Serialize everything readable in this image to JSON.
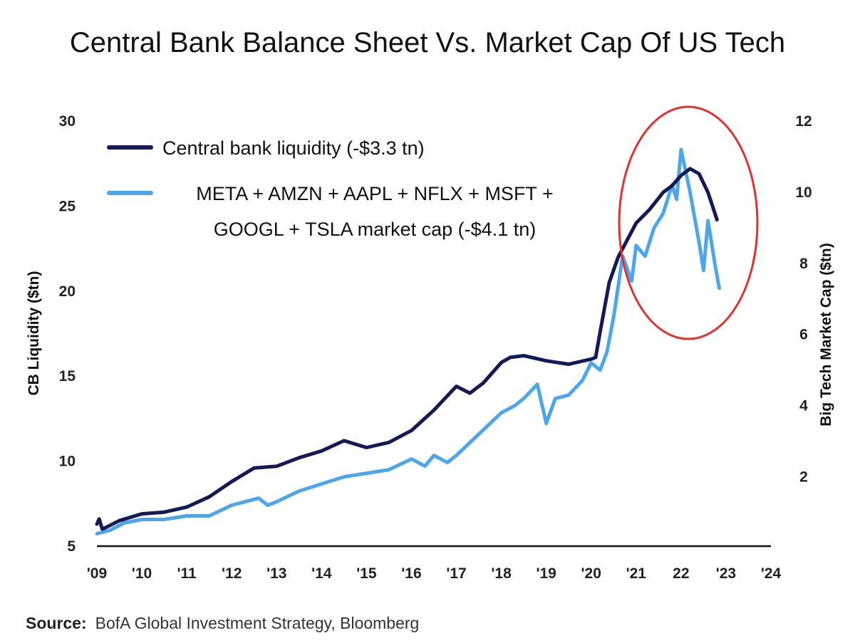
{
  "source": {
    "label": "Source:",
    "text": "BofA Global Investment Strategy, Bloomberg"
  },
  "colors": {
    "cb_liquidity": "#141a55",
    "big_tech": "#4ea6ea",
    "highlight_circle": "#e0332e",
    "axis": "#111111"
  },
  "chart_data": {
    "type": "line",
    "title": "Central Bank Balance Sheet Vs. Market Cap Of US Tech",
    "xlabel": "",
    "ylabel": "CB Liquidity ($tn)",
    "y2label": "Big Tech Market Cap ($tn)",
    "xlim": [
      2009,
      2024
    ],
    "ylim": [
      5,
      30
    ],
    "y2lim": [
      0.05,
      12
    ],
    "x_ticks": [
      2009,
      2010,
      2011,
      2012,
      2013,
      2014,
      2015,
      2016,
      2017,
      2018,
      2019,
      2020,
      2021,
      2022,
      2023,
      2024
    ],
    "x_tick_labels": [
      "'09",
      "'10",
      "'11",
      "'12",
      "'13",
      "'14",
      "'15",
      "'16",
      "'17",
      "'18",
      "'19",
      "'20",
      "'21",
      "22",
      "'23",
      "'24"
    ],
    "y_ticks": [
      5,
      10,
      15,
      20,
      25,
      30
    ],
    "y_tick_labels": [
      "5",
      "10",
      "15",
      "20",
      "25",
      "30"
    ],
    "y2_ticks": [
      2,
      4,
      6,
      8,
      10,
      12
    ],
    "y2_tick_labels": [
      "2",
      "4",
      "6",
      "8",
      "10",
      "12"
    ],
    "legend": [
      "Central bank liquidity (-$3.3 tn)",
      "META + AMZN + AAPL + NFLX + MSFT + GOOGL + TSLA market cap (-$4.1 tn)"
    ],
    "legend_lines": [
      [
        "Central bank liquidity (-$3.3 tn)"
      ],
      [
        "META + AMZN + AAPL + NFLX + MSFT +",
        "GOOGL + TSLA market cap (-$4.1 tn)"
      ]
    ],
    "annotation": "red ellipse highlighting 2021-2023 peak and decline",
    "series": [
      {
        "name": "Central bank liquidity (-$3.3 tn)",
        "axis": "left",
        "x": [
          2009.0,
          2009.05,
          2009.12,
          2009.2,
          2009.5,
          2010.0,
          2010.5,
          2011.0,
          2011.5,
          2012.0,
          2012.5,
          2013.0,
          2013.5,
          2014.0,
          2014.5,
          2015.0,
          2015.5,
          2016.0,
          2016.5,
          2017.0,
          2017.3,
          2017.6,
          2018.0,
          2018.2,
          2018.5,
          2019.0,
          2019.5,
          2020.0,
          2020.1,
          2020.2,
          2020.4,
          2020.6,
          2020.8,
          2021.0,
          2021.3,
          2021.6,
          2021.8,
          2022.0,
          2022.2,
          2022.4,
          2022.6,
          2022.8
        ],
        "values": [
          6.3,
          6.6,
          6.0,
          6.1,
          6.5,
          6.9,
          7.0,
          7.3,
          7.9,
          8.8,
          9.6,
          9.7,
          10.2,
          10.6,
          11.2,
          10.8,
          11.1,
          11.8,
          13.0,
          14.4,
          14.0,
          14.6,
          15.8,
          16.1,
          16.2,
          15.9,
          15.7,
          16.0,
          16.1,
          17.6,
          20.5,
          22.0,
          23.0,
          24.0,
          24.8,
          25.8,
          26.2,
          26.8,
          27.2,
          26.9,
          25.8,
          24.2
        ]
      },
      {
        "name": "META + AMZN + AAPL + NFLX + MSFT + GOOGL + TSLA market cap (-$4.1 tn)",
        "axis": "right",
        "x": [
          2009.0,
          2009.3,
          2009.6,
          2010.0,
          2010.5,
          2011.0,
          2011.5,
          2012.0,
          2012.3,
          2012.6,
          2012.8,
          2013.0,
          2013.5,
          2014.0,
          2014.5,
          2015.0,
          2015.5,
          2016.0,
          2016.3,
          2016.5,
          2016.8,
          2017.0,
          2017.5,
          2018.0,
          2018.3,
          2018.5,
          2018.8,
          2019.0,
          2019.2,
          2019.5,
          2019.8,
          2020.0,
          2020.2,
          2020.35,
          2020.5,
          2020.7,
          2020.9,
          2021.0,
          2021.2,
          2021.4,
          2021.6,
          2021.8,
          2021.9,
          2022.0,
          2022.2,
          2022.4,
          2022.5,
          2022.6,
          2022.75,
          2022.85
        ],
        "values": [
          0.4,
          0.5,
          0.7,
          0.8,
          0.8,
          0.9,
          0.9,
          1.2,
          1.3,
          1.4,
          1.2,
          1.3,
          1.6,
          1.8,
          2.0,
          2.1,
          2.2,
          2.5,
          2.3,
          2.6,
          2.4,
          2.6,
          3.2,
          3.8,
          4.0,
          4.2,
          4.6,
          3.5,
          4.2,
          4.3,
          4.7,
          5.2,
          5.0,
          5.5,
          6.5,
          8.2,
          7.5,
          8.5,
          8.2,
          9.0,
          9.4,
          10.2,
          9.8,
          11.2,
          10.0,
          8.6,
          7.8,
          9.2,
          8.0,
          7.3
        ]
      }
    ]
  }
}
